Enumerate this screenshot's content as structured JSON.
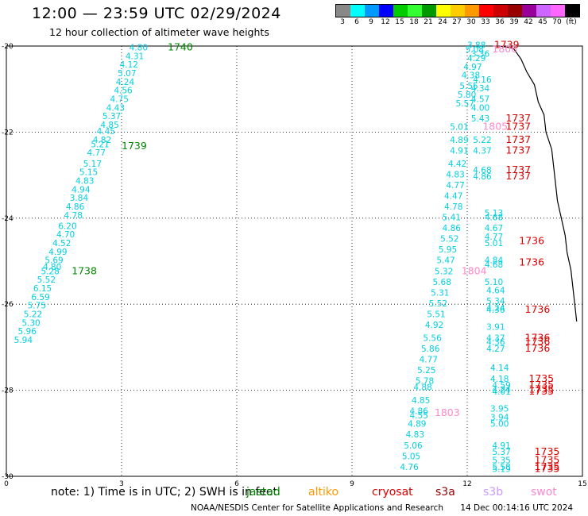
{
  "title": "12:00 — 23:59 UTC 02/29/2024",
  "subtitle": "12 hour collection of altimeter wave heights",
  "colorbar": {
    "colors": [
      "#888888",
      "#00ffff",
      "#0099ff",
      "#0000ff",
      "#00cc00",
      "#33ff33",
      "#009900",
      "#ffff00",
      "#ffcc00",
      "#ff9900",
      "#ff0000",
      "#cc0000",
      "#990000",
      "#990099",
      "#cc66ff",
      "#ff66ff",
      "#000000"
    ],
    "labels": [
      "3",
      "6",
      "9",
      "12",
      "15",
      "18",
      "21",
      "24",
      "27",
      "30",
      "33",
      "36",
      "39",
      "42",
      "45",
      "70",
      "(ft)"
    ]
  },
  "map": {
    "x_ticks": [
      "0",
      "3",
      "6",
      "9",
      "12",
      "15"
    ],
    "y_ticks": [
      "-20",
      "-22",
      "-24",
      "-26",
      "-28",
      "-30"
    ]
  },
  "chart_data": {
    "type": "scatter",
    "xlim": [
      0,
      15
    ],
    "ylim": [
      -30,
      -20
    ],
    "grid": true,
    "labels": [
      {
        "lon": 3.2,
        "lat": -20.1,
        "text": "4.80",
        "color": "#00d0e0"
      },
      {
        "lon": 4.2,
        "lat": -20.1,
        "text": "1740",
        "color": "#008800",
        "big": true
      },
      {
        "lon": 3.1,
        "lat": -20.3,
        "text": "4.31",
        "color": "#00d0e0"
      },
      {
        "lon": 2.95,
        "lat": -20.5,
        "text": "4.12",
        "color": "#00d0e0"
      },
      {
        "lon": 2.9,
        "lat": -20.7,
        "text": "5.07",
        "color": "#00d0e0"
      },
      {
        "lon": 2.85,
        "lat": -20.9,
        "text": "4.24",
        "color": "#00d0e0"
      },
      {
        "lon": 2.8,
        "lat": -21.1,
        "text": "4.56",
        "color": "#00d0e0"
      },
      {
        "lon": 2.7,
        "lat": -21.3,
        "text": "4.75",
        "color": "#00d0e0"
      },
      {
        "lon": 2.6,
        "lat": -21.5,
        "text": "4.43",
        "color": "#00d0e0"
      },
      {
        "lon": 2.5,
        "lat": -21.7,
        "text": "5.37",
        "color": "#00d0e0"
      },
      {
        "lon": 2.45,
        "lat": -21.9,
        "text": "4.85",
        "color": "#00d0e0"
      },
      {
        "lon": 2.35,
        "lat": -22.05,
        "text": "4.45",
        "color": "#00d0e0"
      },
      {
        "lon": 2.25,
        "lat": -22.25,
        "text": "4.82",
        "color": "#00d0e0"
      },
      {
        "lon": 2.2,
        "lat": -22.35,
        "text": "5.21",
        "color": "#00d0e0"
      },
      {
        "lon": 3.0,
        "lat": -22.4,
        "text": "1739",
        "color": "#008800",
        "big": true
      },
      {
        "lon": 2.1,
        "lat": -22.55,
        "text": "4.77",
        "color": "#00d0e0"
      },
      {
        "lon": 2.0,
        "lat": -22.8,
        "text": "5.17",
        "color": "#00d0e0"
      },
      {
        "lon": 1.9,
        "lat": -23.0,
        "text": "5.15",
        "color": "#00d0e0"
      },
      {
        "lon": 1.8,
        "lat": -23.2,
        "text": "4.83",
        "color": "#00d0e0"
      },
      {
        "lon": 1.7,
        "lat": -23.4,
        "text": "4.94",
        "color": "#00d0e0"
      },
      {
        "lon": 1.65,
        "lat": -23.6,
        "text": "3.84",
        "color": "#00d0e0"
      },
      {
        "lon": 1.55,
        "lat": -23.8,
        "text": "4.86",
        "color": "#00d0e0"
      },
      {
        "lon": 1.5,
        "lat": -24.0,
        "text": "4.78",
        "color": "#00d0e0"
      },
      {
        "lon": 1.35,
        "lat": -24.25,
        "text": "6.20",
        "color": "#00d0e0"
      },
      {
        "lon": 1.3,
        "lat": -24.45,
        "text": "4.70",
        "color": "#00d0e0"
      },
      {
        "lon": 1.2,
        "lat": -24.65,
        "text": "4.52",
        "color": "#00d0e0"
      },
      {
        "lon": 1.1,
        "lat": -24.85,
        "text": "4.99",
        "color": "#00d0e0"
      },
      {
        "lon": 1.0,
        "lat": -25.05,
        "text": "5.69",
        "color": "#00d0e0"
      },
      {
        "lon": 0.95,
        "lat": -25.2,
        "text": "4.80",
        "color": "#00d0e0"
      },
      {
        "lon": 0.9,
        "lat": -25.3,
        "text": "5.28",
        "color": "#00d0e0"
      },
      {
        "lon": 1.7,
        "lat": -25.3,
        "text": "1738",
        "color": "#008800",
        "big": true
      },
      {
        "lon": 0.8,
        "lat": -25.5,
        "text": "5.52",
        "color": "#00d0e0"
      },
      {
        "lon": 0.7,
        "lat": -25.7,
        "text": "6.15",
        "color": "#00d0e0"
      },
      {
        "lon": 0.65,
        "lat": -25.9,
        "text": "6.59",
        "color": "#00d0e0"
      },
      {
        "lon": 0.55,
        "lat": -26.1,
        "text": "5.75",
        "color": "#00d0e0"
      },
      {
        "lon": 0.45,
        "lat": -26.3,
        "text": "5.22",
        "color": "#00d0e0"
      },
      {
        "lon": 0.4,
        "lat": -26.5,
        "text": "5.30",
        "color": "#00d0e0"
      },
      {
        "lon": 0.3,
        "lat": -26.7,
        "text": "5.96",
        "color": "#00d0e0"
      },
      {
        "lon": 0.2,
        "lat": -26.9,
        "text": "5.94",
        "color": "#00d0e0"
      },
      {
        "lon": 12.0,
        "lat": -20.05,
        "text": "3.88",
        "color": "#00d0e0"
      },
      {
        "lon": 12.7,
        "lat": -20.05,
        "text": "1739",
        "color": "#dd0000",
        "big": true
      },
      {
        "lon": 12.65,
        "lat": -20.15,
        "text": "1806",
        "color": "#ff88cc",
        "big": true
      },
      {
        "lon": 11.95,
        "lat": -20.15,
        "text": "5.08",
        "color": "#00d0e0"
      },
      {
        "lon": 12.1,
        "lat": -20.25,
        "text": "3.36",
        "color": "#00d0e0"
      },
      {
        "lon": 12.0,
        "lat": -20.35,
        "text": "4.29",
        "color": "#00d0e0"
      },
      {
        "lon": 11.9,
        "lat": -20.55,
        "text": "4.97",
        "color": "#00d0e0"
      },
      {
        "lon": 11.85,
        "lat": -20.75,
        "text": "4.38",
        "color": "#00d0e0"
      },
      {
        "lon": 12.15,
        "lat": -20.85,
        "text": "4.16",
        "color": "#00d0e0"
      },
      {
        "lon": 11.8,
        "lat": -21.0,
        "text": "5.55",
        "color": "#00d0e0"
      },
      {
        "lon": 12.1,
        "lat": -21.05,
        "text": "4.34",
        "color": "#00d0e0"
      },
      {
        "lon": 11.75,
        "lat": -21.2,
        "text": "5.80",
        "color": "#00d0e0"
      },
      {
        "lon": 12.1,
        "lat": -21.3,
        "text": "4.57",
        "color": "#00d0e0"
      },
      {
        "lon": 11.7,
        "lat": -21.4,
        "text": "5.57",
        "color": "#00d0e0"
      },
      {
        "lon": 12.1,
        "lat": -21.5,
        "text": "4.00",
        "color": "#00d0e0"
      },
      {
        "lon": 12.1,
        "lat": -21.75,
        "text": "5.43",
        "color": "#00d0e0"
      },
      {
        "lon": 13.0,
        "lat": -21.75,
        "text": "1737",
        "color": "#dd0000",
        "big": true
      },
      {
        "lon": 11.55,
        "lat": -21.95,
        "text": "5.01",
        "color": "#00d0e0"
      },
      {
        "lon": 12.4,
        "lat": -21.95,
        "text": "1805",
        "color": "#ff88cc",
        "big": true
      },
      {
        "lon": 13.0,
        "lat": -21.95,
        "text": "1737",
        "color": "#dd0000",
        "big": true
      },
      {
        "lon": 11.55,
        "lat": -22.25,
        "text": "4.89",
        "color": "#00d0e0"
      },
      {
        "lon": 12.15,
        "lat": -22.25,
        "text": "5.22",
        "color": "#00d0e0"
      },
      {
        "lon": 13.0,
        "lat": -22.25,
        "text": "1737",
        "color": "#dd0000",
        "big": true
      },
      {
        "lon": 11.55,
        "lat": -22.5,
        "text": "4.91",
        "color": "#00d0e0"
      },
      {
        "lon": 12.15,
        "lat": -22.5,
        "text": "4.37",
        "color": "#00d0e0"
      },
      {
        "lon": 13.0,
        "lat": -22.5,
        "text": "1737",
        "color": "#dd0000",
        "big": true
      },
      {
        "lon": 11.5,
        "lat": -22.8,
        "text": "4.42",
        "color": "#00d0e0"
      },
      {
        "lon": 11.45,
        "lat": -23.05,
        "text": "4.83",
        "color": "#00d0e0"
      },
      {
        "lon": 12.15,
        "lat": -22.95,
        "text": "4.68",
        "color": "#00d0e0"
      },
      {
        "lon": 13.0,
        "lat": -22.95,
        "text": "1737",
        "color": "#dd0000",
        "big": true
      },
      {
        "lon": 12.15,
        "lat": -23.1,
        "text": "4.86",
        "color": "#00d0e0"
      },
      {
        "lon": 13.0,
        "lat": -23.1,
        "text": "1737",
        "color": "#dd0000",
        "big": true
      },
      {
        "lon": 11.45,
        "lat": -23.3,
        "text": "4.77",
        "color": "#00d0e0"
      },
      {
        "lon": 11.4,
        "lat": -23.55,
        "text": "4.47",
        "color": "#00d0e0"
      },
      {
        "lon": 11.4,
        "lat": -23.8,
        "text": "4.78",
        "color": "#00d0e0"
      },
      {
        "lon": 12.45,
        "lat": -23.95,
        "text": "5.13",
        "color": "#00d0e0"
      },
      {
        "lon": 11.35,
        "lat": -24.05,
        "text": "5.41",
        "color": "#00d0e0"
      },
      {
        "lon": 12.45,
        "lat": -24.05,
        "text": "4.68",
        "color": "#00d0e0"
      },
      {
        "lon": 11.35,
        "lat": -24.3,
        "text": "4.86",
        "color": "#00d0e0"
      },
      {
        "lon": 12.45,
        "lat": -24.3,
        "text": "4.67",
        "color": "#00d0e0"
      },
      {
        "lon": 11.3,
        "lat": -24.55,
        "text": "5.52",
        "color": "#00d0e0"
      },
      {
        "lon": 12.45,
        "lat": -24.5,
        "text": "4.77",
        "color": "#00d0e0"
      },
      {
        "lon": 12.45,
        "lat": -24.65,
        "text": "5.01",
        "color": "#00d0e0"
      },
      {
        "lon": 13.35,
        "lat": -24.6,
        "text": "1736",
        "color": "#dd0000",
        "big": true
      },
      {
        "lon": 11.25,
        "lat": -24.8,
        "text": "5.95",
        "color": "#00d0e0"
      },
      {
        "lon": 11.2,
        "lat": -25.05,
        "text": "5.47",
        "color": "#00d0e0"
      },
      {
        "lon": 12.45,
        "lat": -25.05,
        "text": "4.84",
        "color": "#00d0e0"
      },
      {
        "lon": 12.45,
        "lat": -25.15,
        "text": "4.68",
        "color": "#00d0e0"
      },
      {
        "lon": 13.35,
        "lat": -25.1,
        "text": "1736",
        "color": "#dd0000",
        "big": true
      },
      {
        "lon": 11.15,
        "lat": -25.3,
        "text": "5.32",
        "color": "#00d0e0"
      },
      {
        "lon": 11.85,
        "lat": -25.3,
        "text": "1804",
        "color": "#ff88cc",
        "big": true
      },
      {
        "lon": 11.1,
        "lat": -25.55,
        "text": "5.68",
        "color": "#00d0e0"
      },
      {
        "lon": 12.45,
        "lat": -25.55,
        "text": "5.10",
        "color": "#00d0e0"
      },
      {
        "lon": 12.5,
        "lat": -25.75,
        "text": "4.64",
        "color": "#00d0e0"
      },
      {
        "lon": 11.05,
        "lat": -25.8,
        "text": "5.31",
        "color": "#00d0e0"
      },
      {
        "lon": 12.5,
        "lat": -26.0,
        "text": "5.34",
        "color": "#00d0e0"
      },
      {
        "lon": 11.0,
        "lat": -26.05,
        "text": "5.52",
        "color": "#00d0e0"
      },
      {
        "lon": 12.5,
        "lat": -26.15,
        "text": "4.24",
        "color": "#00d0e0"
      },
      {
        "lon": 12.5,
        "lat": -26.2,
        "text": "4.36",
        "color": "#00d0e0"
      },
      {
        "lon": 13.5,
        "lat": -26.2,
        "text": "1736",
        "color": "#dd0000",
        "big": true
      },
      {
        "lon": 10.95,
        "lat": -26.3,
        "text": "5.51",
        "color": "#00d0e0"
      },
      {
        "lon": 10.9,
        "lat": -26.55,
        "text": "4.92",
        "color": "#00d0e0"
      },
      {
        "lon": 12.5,
        "lat": -26.6,
        "text": "3.91",
        "color": "#00d0e0"
      },
      {
        "lon": 10.85,
        "lat": -26.85,
        "text": "5.56",
        "color": "#00d0e0"
      },
      {
        "lon": 12.5,
        "lat": -26.85,
        "text": "4.37",
        "color": "#00d0e0"
      },
      {
        "lon": 13.5,
        "lat": -26.85,
        "text": "1736",
        "color": "#dd0000",
        "big": true
      },
      {
        "lon": 12.5,
        "lat": -26.95,
        "text": "4.36",
        "color": "#00d0e0"
      },
      {
        "lon": 13.5,
        "lat": -26.95,
        "text": "1736",
        "color": "#dd0000",
        "big": true
      },
      {
        "lon": 10.8,
        "lat": -27.1,
        "text": "5.86",
        "color": "#00d0e0"
      },
      {
        "lon": 12.5,
        "lat": -27.1,
        "text": "4.27",
        "color": "#00d0e0"
      },
      {
        "lon": 13.5,
        "lat": -27.1,
        "text": "1736",
        "color": "#dd0000",
        "big": true
      },
      {
        "lon": 10.75,
        "lat": -27.35,
        "text": "4.77",
        "color": "#00d0e0"
      },
      {
        "lon": 12.6,
        "lat": -27.55,
        "text": "4.14",
        "color": "#00d0e0"
      },
      {
        "lon": 10.7,
        "lat": -27.6,
        "text": "5.25",
        "color": "#00d0e0"
      },
      {
        "lon": 10.65,
        "lat": -27.85,
        "text": "5.78",
        "color": "#00d0e0"
      },
      {
        "lon": 12.6,
        "lat": -27.8,
        "text": "4.18",
        "color": "#00d0e0"
      },
      {
        "lon": 13.6,
        "lat": -27.8,
        "text": "1735",
        "color": "#dd0000",
        "big": true
      },
      {
        "lon": 10.6,
        "lat": -28.0,
        "text": "4.88",
        "color": "#00d0e0"
      },
      {
        "lon": 12.65,
        "lat": -27.95,
        "text": "4.59",
        "color": "#00d0e0"
      },
      {
        "lon": 13.6,
        "lat": -27.95,
        "text": "1735",
        "color": "#dd0000",
        "big": true
      },
      {
        "lon": 12.65,
        "lat": -28.05,
        "text": "4.24",
        "color": "#00d0e0"
      },
      {
        "lon": 13.6,
        "lat": -28.05,
        "text": "1735",
        "color": "#dd0000",
        "big": true
      },
      {
        "lon": 12.65,
        "lat": -28.1,
        "text": "4.01",
        "color": "#00d0e0"
      },
      {
        "lon": 13.6,
        "lat": -28.1,
        "text": "1735",
        "color": "#dd0000",
        "big": true
      },
      {
        "lon": 10.55,
        "lat": -28.3,
        "text": "4.85",
        "color": "#00d0e0"
      },
      {
        "lon": 12.6,
        "lat": -28.5,
        "text": "3.95",
        "color": "#00d0e0"
      },
      {
        "lon": 10.5,
        "lat": -28.55,
        "text": "4.86",
        "color": "#00d0e0"
      },
      {
        "lon": 10.5,
        "lat": -28.65,
        "text": "4.55",
        "color": "#00d0e0"
      },
      {
        "lon": 11.15,
        "lat": -28.6,
        "text": "1803",
        "color": "#ff88cc",
        "big": true
      },
      {
        "lon": 12.6,
        "lat": -28.7,
        "text": "3.94",
        "color": "#00d0e0"
      },
      {
        "lon": 10.45,
        "lat": -28.85,
        "text": "4.89",
        "color": "#00d0e0"
      },
      {
        "lon": 12.6,
        "lat": -28.85,
        "text": "5.00",
        "color": "#00d0e0"
      },
      {
        "lon": 10.4,
        "lat": -29.1,
        "text": "4.83",
        "color": "#00d0e0"
      },
      {
        "lon": 10.35,
        "lat": -29.35,
        "text": "5.06",
        "color": "#00d0e0"
      },
      {
        "lon": 12.65,
        "lat": -29.35,
        "text": "4.91",
        "color": "#00d0e0"
      },
      {
        "lon": 12.65,
        "lat": -29.5,
        "text": "5.37",
        "color": "#00d0e0"
      },
      {
        "lon": 13.75,
        "lat": -29.5,
        "text": "1735",
        "color": "#dd0000",
        "big": true
      },
      {
        "lon": 10.3,
        "lat": -29.6,
        "text": "5.05",
        "color": "#00d0e0"
      },
      {
        "lon": 12.65,
        "lat": -29.7,
        "text": "5.35",
        "color": "#00d0e0"
      },
      {
        "lon": 13.75,
        "lat": -29.7,
        "text": "1735",
        "color": "#dd0000",
        "big": true
      },
      {
        "lon": 10.25,
        "lat": -29.85,
        "text": "4.76",
        "color": "#00d0e0"
      },
      {
        "lon": 12.65,
        "lat": -29.85,
        "text": "5.58",
        "color": "#00d0e0"
      },
      {
        "lon": 13.75,
        "lat": -29.85,
        "text": "1735",
        "color": "#dd0000",
        "big": true
      },
      {
        "lon": 12.65,
        "lat": -29.9,
        "text": "5.19",
        "color": "#00d0e0"
      },
      {
        "lon": 13.75,
        "lat": -29.9,
        "text": "1735",
        "color": "#dd0000",
        "big": true
      }
    ]
  },
  "note": "note:  1) Time is in UTC; 2) SWH is in feet",
  "legend": [
    {
      "text": "jastad",
      "color": "#008800"
    },
    {
      "text": "altiko",
      "color": "#ff9900"
    },
    {
      "text": "cryosat",
      "color": "#dd0000"
    },
    {
      "text": "s3a",
      "color": "#990000"
    },
    {
      "text": "s3b",
      "color": "#cc99ff"
    },
    {
      "text": "swot",
      "color": "#ff88cc"
    }
  ],
  "footer": {
    "credit": "NOAA/NESDIS Center for Satellite Applications and Research",
    "timestamp": "14 Dec 00:14:16 UTC 2024"
  }
}
